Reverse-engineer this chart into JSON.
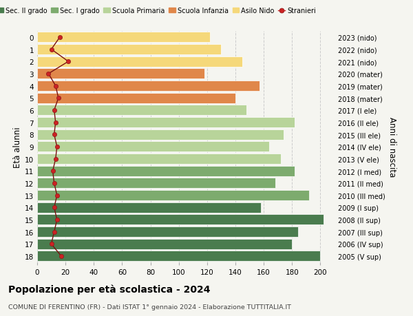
{
  "ages": [
    18,
    17,
    16,
    15,
    14,
    13,
    12,
    11,
    10,
    9,
    8,
    7,
    6,
    5,
    4,
    3,
    2,
    1,
    0
  ],
  "right_labels": [
    "2005 (V sup)",
    "2006 (IV sup)",
    "2007 (III sup)",
    "2008 (II sup)",
    "2009 (I sup)",
    "2010 (III med)",
    "2011 (II med)",
    "2012 (I med)",
    "2013 (V ele)",
    "2014 (IV ele)",
    "2015 (III ele)",
    "2016 (II ele)",
    "2017 (I ele)",
    "2018 (mater)",
    "2019 (mater)",
    "2020 (mater)",
    "2021 (nido)",
    "2022 (nido)",
    "2023 (nido)"
  ],
  "bar_values": [
    200,
    180,
    184,
    202,
    158,
    192,
    168,
    182,
    172,
    164,
    174,
    182,
    148,
    140,
    157,
    118,
    145,
    130,
    122
  ],
  "bar_colors": [
    "#4a7c4e",
    "#4a7c4e",
    "#4a7c4e",
    "#4a7c4e",
    "#4a7c4e",
    "#7dab6e",
    "#7dab6e",
    "#7dab6e",
    "#b8d49a",
    "#b8d49a",
    "#b8d49a",
    "#b8d49a",
    "#b8d49a",
    "#e0874a",
    "#e0874a",
    "#e0874a",
    "#f5d87a",
    "#f5d87a",
    "#f5d87a"
  ],
  "stranieri_values": [
    17,
    10,
    12,
    14,
    12,
    14,
    12,
    11,
    13,
    14,
    12,
    13,
    12,
    15,
    13,
    8,
    22,
    10,
    16
  ],
  "legend_labels": [
    "Sec. II grado",
    "Sec. I grado",
    "Scuola Primaria",
    "Scuola Infanzia",
    "Asilo Nido",
    "Stranieri"
  ],
  "legend_colors": [
    "#4a7c4e",
    "#7dab6e",
    "#b8d49a",
    "#e0874a",
    "#f5d87a",
    "#cc2222"
  ],
  "title1": "Popolazione per età scolastica - 2024",
  "title2": "COMUNE DI FERENTINO (FR) - Dati ISTAT 1° gennaio 2024 - Elaborazione TUTTITALIA.IT",
  "ylabel_left": "Età alunni",
  "ylabel_right": "Anni di nascita",
  "background_color": "#f5f5f0",
  "grid_color": "#cccccc",
  "xlim": [
    0,
    210
  ],
  "xticks": [
    0,
    20,
    40,
    60,
    80,
    100,
    120,
    140,
    160,
    180,
    200
  ]
}
